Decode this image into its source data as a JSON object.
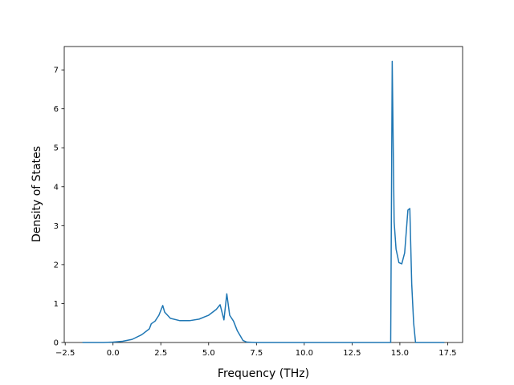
{
  "chart_data": {
    "type": "line",
    "x_label": "Frequency (THz)",
    "y_label": "Density of States",
    "color": "#1f77b4",
    "x": [
      -1.6,
      -0.5,
      0,
      0.5,
      1.0,
      1.5,
      1.9,
      2.0,
      2.2,
      2.4,
      2.6,
      2.7,
      3.0,
      3.5,
      4.0,
      4.5,
      5.0,
      5.4,
      5.6,
      5.8,
      5.95,
      6.1,
      6.3,
      6.5,
      6.8,
      7.0,
      7.5,
      14.52,
      14.6,
      14.7,
      14.8,
      14.95,
      15.1,
      15.25,
      15.42,
      15.52,
      15.62,
      15.72,
      15.82,
      17.33
    ],
    "values": [
      0,
      0,
      0.01,
      0.03,
      0.08,
      0.2,
      0.35,
      0.48,
      0.55,
      0.7,
      0.95,
      0.78,
      0.62,
      0.56,
      0.56,
      0.6,
      0.7,
      0.85,
      0.97,
      0.58,
      1.25,
      0.7,
      0.55,
      0.3,
      0.05,
      0.01,
      0,
      0,
      7.22,
      3.1,
      2.4,
      2.05,
      2.02,
      2.3,
      3.4,
      3.44,
      1.5,
      0.5,
      0,
      0
    ],
    "xlim": [
      -2.55,
      18.28
    ],
    "ylim": [
      0,
      7.6
    ],
    "xticks": [
      {
        "value": -2.5,
        "label": "−2.5"
      },
      {
        "value": 0,
        "label": "0.0"
      },
      {
        "value": 2.5,
        "label": "2.5"
      },
      {
        "value": 5,
        "label": "5.0"
      },
      {
        "value": 7.5,
        "label": "7.5"
      },
      {
        "value": 10,
        "label": "10.0"
      },
      {
        "value": 12.5,
        "label": "12.5"
      },
      {
        "value": 15,
        "label": "15.0"
      },
      {
        "value": 17.5,
        "label": "17.5"
      }
    ],
    "yticks": [
      0,
      1,
      2,
      3,
      4,
      5,
      6,
      7
    ]
  }
}
